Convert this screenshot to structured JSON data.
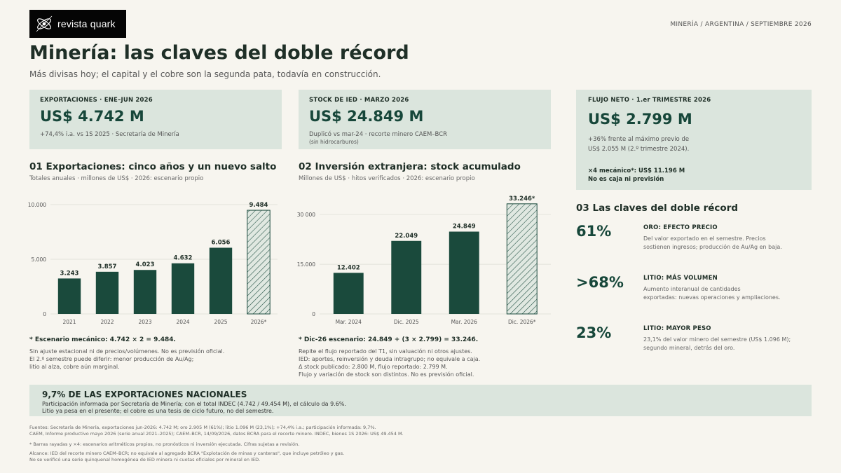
{
  "brand": {
    "name": "revista quark",
    "logo_icon": "atom-icon"
  },
  "topline": "MINERÍA / ARGENTINA / SEPTIEMBRE 2026",
  "header": {
    "title": "Minería: las claves del doble récord",
    "subtitle": "Más divisas hoy; el capital y el cobre son la segunda pata, todavía en construcción."
  },
  "cards": [
    {
      "label": "EXPORTACIONES · ENE–JUN 2026",
      "value": "US$ 4.742 M",
      "notes": [
        "+74,4% i.a. vs 1S 2025 · Secretaría de Minería"
      ]
    },
    {
      "label": "STOCK DE IED · MARZO 2026",
      "value": "US$ 24.849 M",
      "notes": [
        "Duplicó vs mar-24 · recorte minero CAEM–BCR",
        "(sin hidrocarburos)"
      ]
    },
    {
      "label": "FLUJO NETO · 1.er TRIMESTRE 2026",
      "value": "US$ 2.799 M",
      "notes": [
        "+36% frente al máximo previo de",
        "US$ 2.055 M (2.º trimestre 2024)."
      ],
      "strong": [
        "×4 mecánico*: US$ 11.196 M",
        "No es caja ni previsión"
      ]
    }
  ],
  "section1": {
    "title": "01  Exportaciones: cinco años y un nuevo salto",
    "subtitle": "Totales anuales · millones de US$ · 2026: escenario propio",
    "note_strong": "* Escenario mecánico: 4.742 × 2 = 9.484.",
    "notes": [
      "Sin ajuste estacional ni de precios/volúmenes. No es previsión oficial.",
      "El 2.º semestre puede diferir: menor producción de Au/Ag;",
      "litio al alza, cobre aún marginal."
    ]
  },
  "section2": {
    "title": "02  Inversión extranjera: stock acumulado",
    "subtitle": "Millones de US$ · hitos verificados · 2026: escenario propio",
    "note_strong": "* Dic-26 escenario: 24.849 + (3 × 2.799) = 33.246.",
    "notes": [
      "Repite el flujo reportado del T1, sin valuación ni otros ajustes.",
      "IED: aportes, reinversión y deuda intragrupo; no equivale a caja.",
      "Δ stock publicado: 2.800 M, flujo reportado: 2.799 M.",
      "Flujo y variación de stock son distintos. No es previsión oficial."
    ]
  },
  "section3": {
    "title": "03  Las claves del doble récord",
    "items": [
      {
        "value": "61%",
        "title": "ORO: EFECTO PRECIO",
        "desc": [
          "Del valor exportado en el semestre. Precios",
          "sostienen ingresos; producción de Au/Ag en baja."
        ]
      },
      {
        "value": ">68%",
        "title": "LITIO: MÁS VOLUMEN",
        "desc": [
          "Aumento interanual de cantidades",
          "exportadas: nuevas operaciones y ampliaciones."
        ]
      },
      {
        "value": "23%",
        "title": "LITIO: MAYOR PESO",
        "desc": [
          "23,1% del valor minero del semestre (US$ 1.096 M);",
          "segundo mineral, detrás del oro."
        ]
      }
    ]
  },
  "band": {
    "title": "9,7% DE LAS EXPORTACIONES NACIONALES",
    "lines": [
      "Participación informada por Secretaría de Minería; con el total INDEC (4.742 / 49.454 M), el cálculo da 9.6%.",
      "Litio ya pesa en el presente; el cobre es una tesis de ciclo futuro, no del semestre."
    ]
  },
  "sources": {
    "group1": [
      "Fuentes: Secretaría de Minería, exportaciones jun-2026: 4.742 M; oro 2.905 M (61%); litio 1.096 M (23,1%); +74,4% i.a.; participación informada: 9,7%.",
      "CAEM, Informe productivo mayo 2026 (serie anual 2021–2025); CAEM–BCR, 14/09/2026, datos BCRA para el recorte minero. INDEC, bienes 1S 2026: US$ 49.454 M."
    ],
    "group2": [
      "* Barras rayadas y ×4: escenarios aritméticos propios, no pronósticos ni inversión ejecutada. Cifras sujetas a revisión."
    ],
    "group3": [
      "Alcance: IED del recorte minero CAEM–BCR; no equivale al agregado BCRA \"Explotación de minas y canteras\", que incluye petróleo y gas.",
      "No se verificó una serie quinquenal homogénea de IED minera ni cuotas oficiales por mineral en IED."
    ]
  },
  "chart_data": [
    {
      "type": "bar",
      "title": "Exportaciones: cinco años y un nuevo salto",
      "ylabel": "millones de US$",
      "categories": [
        "2021",
        "2022",
        "2023",
        "2024",
        "2025",
        "2026*"
      ],
      "values": [
        3243,
        3857,
        4023,
        4632,
        6056,
        9484
      ],
      "value_labels": [
        "3.243",
        "3.857",
        "4.023",
        "4.632",
        "6.056",
        "9.484"
      ],
      "scenario": [
        false,
        false,
        false,
        false,
        false,
        true
      ],
      "yticks": [
        0,
        5000,
        10000
      ],
      "ytick_labels": [
        "0",
        "5.000",
        "10.000"
      ],
      "ylim": [
        0,
        10000
      ],
      "grid": true,
      "colors": {
        "bar": "#1a4a3c",
        "scenario_fill": "#e0e8e1",
        "hatch": "#1a4a3c"
      }
    },
    {
      "type": "bar",
      "title": "Inversión extranjera: stock acumulado",
      "ylabel": "Millones de US$",
      "categories": [
        "Mar. 2024",
        "Dic. 2025",
        "Mar. 2026",
        "Dic. 2026*"
      ],
      "values": [
        12402,
        22049,
        24849,
        33246
      ],
      "value_labels": [
        "12.402",
        "22.049",
        "24.849",
        "33.246*"
      ],
      "scenario": [
        false,
        false,
        false,
        true
      ],
      "yticks": [
        0,
        15000,
        30000
      ],
      "ytick_labels": [
        "0",
        "15.000",
        "30 000"
      ],
      "ylim": [
        0,
        33000
      ],
      "grid": true,
      "colors": {
        "bar": "#1a4a3c",
        "scenario_fill": "#e0e8e1",
        "hatch": "#1a4a3c"
      }
    }
  ]
}
